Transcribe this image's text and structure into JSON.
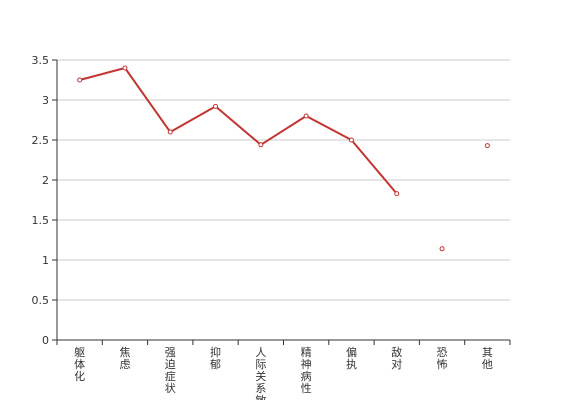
{
  "chart_data": {
    "type": "line",
    "categories": [
      "躯体化",
      "焦虑",
      "强迫症状",
      "抑郁",
      "人际关系敏感",
      "精神病性",
      "偏执",
      "敌对",
      "恐怖",
      "其他"
    ],
    "values": [
      3.25,
      3.4,
      2.6,
      2.92,
      2.44,
      2.8,
      2.5,
      1.83,
      1.14,
      2.43
    ],
    "connected": [
      true,
      true,
      true,
      true,
      true,
      true,
      true,
      true,
      false,
      false
    ],
    "ylim": [
      0,
      3.5
    ],
    "yticks": [
      "0",
      "0.5",
      "1",
      "1.5",
      "2",
      "2.5",
      "3",
      "3.5"
    ],
    "grid": true,
    "title": "",
    "xlabel": "",
    "ylabel": "",
    "colors": {
      "line": "#c23531",
      "grid": "#cccccc",
      "axis": "#333333",
      "text": "#333333"
    }
  }
}
